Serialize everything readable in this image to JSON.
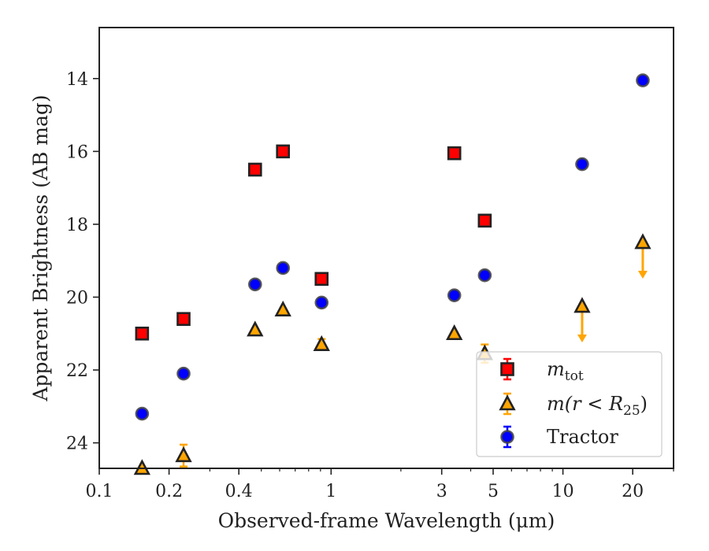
{
  "chart_data": {
    "type": "scatter",
    "title": "",
    "xlabel": "Observed-frame Wavelength (μm)",
    "ylabel": "Apparent Brightness (AB mag)",
    "xscale": "log",
    "xlim": [
      0.1,
      30
    ],
    "ylim": [
      24.7,
      12.6
    ],
    "y_inverted": true,
    "xticks": [
      0.1,
      0.2,
      0.4,
      1,
      3,
      5,
      10,
      20
    ],
    "xtick_labels": [
      "0.1",
      "0.2",
      "0.4",
      "1",
      "3",
      "5",
      "10",
      "20"
    ],
    "yticks": [
      14,
      16,
      18,
      20,
      22,
      24
    ],
    "ytick_labels": [
      "14",
      "16",
      "18",
      "20",
      "22",
      "24"
    ],
    "grid": false,
    "legend_position": "lower-right",
    "series": [
      {
        "name": "m_tot",
        "marker": "square",
        "face_color": "#ff0000",
        "edge_color": "#222222",
        "errorbar_color": "#ff0000",
        "points": [
          {
            "x": 0.153,
            "y": 21.0
          },
          {
            "x": 0.231,
            "y": 20.6
          },
          {
            "x": 0.47,
            "y": 16.5
          },
          {
            "x": 0.62,
            "y": 16.0
          },
          {
            "x": 0.91,
            "y": 19.5
          },
          {
            "x": 3.4,
            "y": 16.05
          },
          {
            "x": 4.6,
            "y": 17.9
          }
        ]
      },
      {
        "name": "m(r<R25)",
        "marker": "triangle",
        "face_color": "#ffa500",
        "edge_color": "#222222",
        "errorbar_color": "#ffa500",
        "points": [
          {
            "x": 0.153,
            "y": 24.7,
            "err": 0
          },
          {
            "x": 0.231,
            "y": 24.35,
            "err": 0.3
          },
          {
            "x": 0.47,
            "y": 20.9,
            "err": 0
          },
          {
            "x": 0.62,
            "y": 20.35,
            "err": 0
          },
          {
            "x": 0.91,
            "y": 21.3,
            "err": 0.15
          },
          {
            "x": 3.4,
            "y": 21.0,
            "err": 0
          },
          {
            "x": 4.6,
            "y": 21.55,
            "err": 0.25
          },
          {
            "x": 12.1,
            "y": 20.25,
            "upper_limit": true
          },
          {
            "x": 22.1,
            "y": 18.5,
            "upper_limit": true
          }
        ]
      },
      {
        "name": "Tractor",
        "marker": "circle",
        "face_color": "#0000ff",
        "edge_color": "#444444",
        "errorbar_color": "#0000ff",
        "points": [
          {
            "x": 0.153,
            "y": 23.2
          },
          {
            "x": 0.231,
            "y": 22.1
          },
          {
            "x": 0.47,
            "y": 19.65
          },
          {
            "x": 0.62,
            "y": 19.2
          },
          {
            "x": 0.91,
            "y": 20.15
          },
          {
            "x": 3.4,
            "y": 19.95
          },
          {
            "x": 4.6,
            "y": 19.4
          },
          {
            "x": 12.1,
            "y": 16.35
          },
          {
            "x": 22.1,
            "y": 14.05
          }
        ]
      }
    ],
    "legend": [
      {
        "label_main": "m",
        "label_sub": "tot",
        "series": 0
      },
      {
        "label": "m(r < R",
        "label_sub": "25",
        "label_end": ")",
        "series": 1
      },
      {
        "label": "Tractor",
        "series": 2
      }
    ]
  }
}
